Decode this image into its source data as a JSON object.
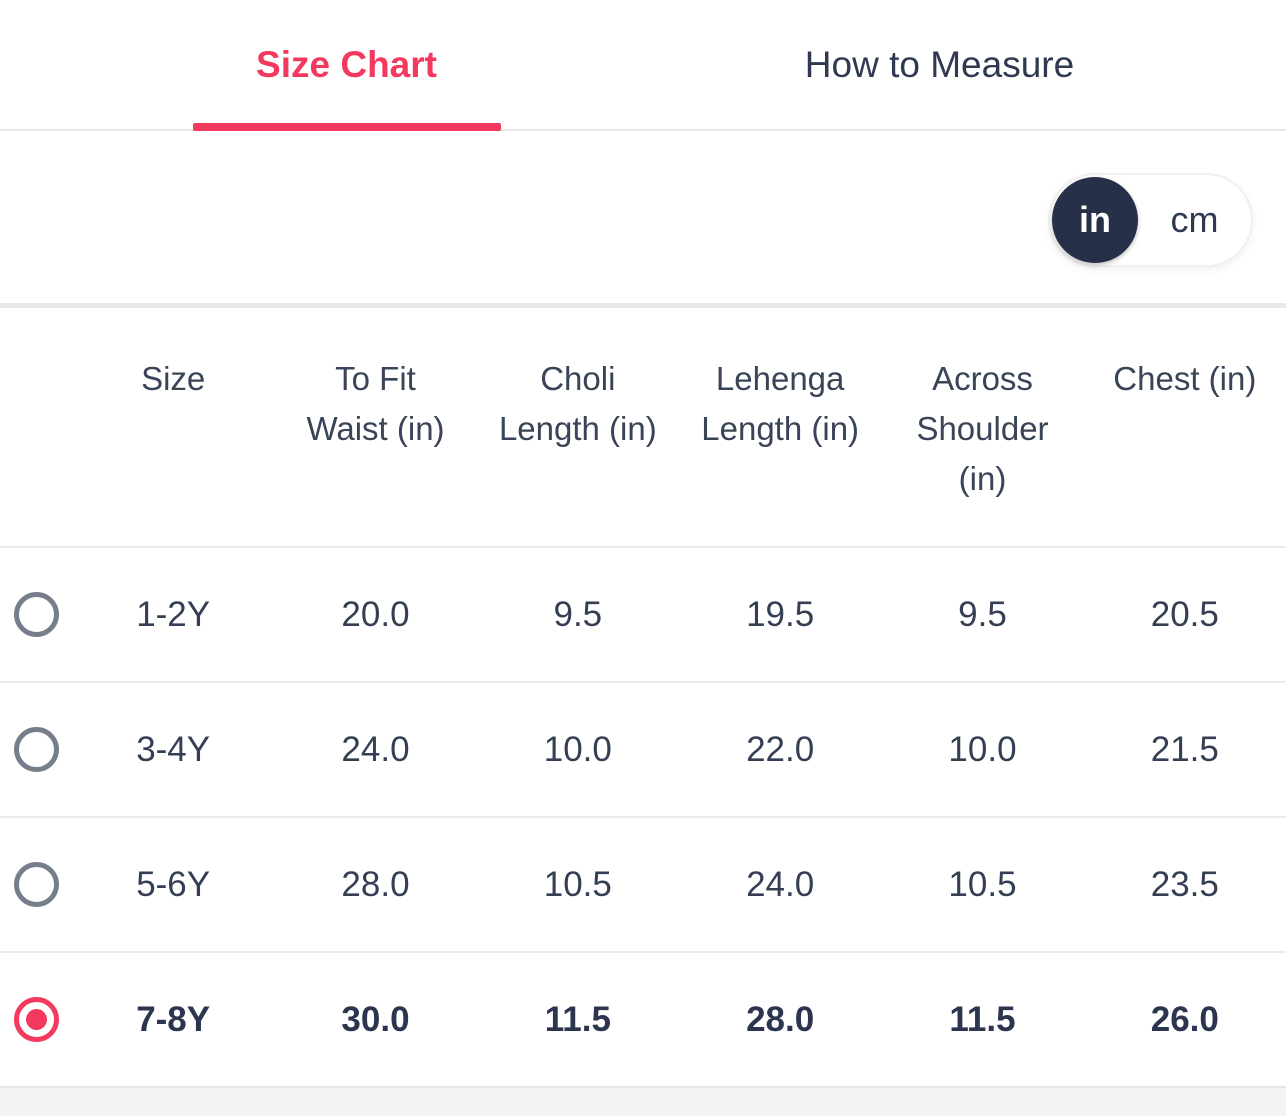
{
  "colors": {
    "accent_pink": "#F4395E",
    "text_dark": "#353F54",
    "toggle_dark": "#263049",
    "radio_gray": "#777E8B",
    "separator": "#ECECEC"
  },
  "tabs": [
    {
      "label": "Size Chart",
      "active": true
    },
    {
      "label": "How to Measure",
      "active": false
    }
  ],
  "unit_toggle": {
    "selected": "in",
    "options": [
      {
        "label": "in",
        "selected": true
      },
      {
        "label": "cm",
        "selected": false
      }
    ]
  },
  "table": {
    "columns": [
      {
        "label": "Size",
        "lines": [
          "Size"
        ]
      },
      {
        "label": "To Fit Waist (in)",
        "lines": [
          "To Fit",
          "Waist (in)"
        ]
      },
      {
        "label": "Choli Length (in)",
        "lines": [
          "Choli",
          "Length (in)"
        ]
      },
      {
        "label": "Lehenga Length (in)",
        "lines": [
          "Lehenga",
          "Length (in)"
        ]
      },
      {
        "label": "Across Shoulder (in)",
        "lines": [
          "Across",
          "Shoulder",
          "(in)"
        ]
      },
      {
        "label": "Chest (in)",
        "lines": [
          "Chest (in)"
        ]
      }
    ],
    "rows": [
      {
        "size": "1-2Y",
        "to_fit_waist": "20.0",
        "choli_length": "9.5",
        "lehenga_length": "19.5",
        "across_shoulder": "9.5",
        "chest": "20.5",
        "selected": false
      },
      {
        "size": "3-4Y",
        "to_fit_waist": "24.0",
        "choli_length": "10.0",
        "lehenga_length": "22.0",
        "across_shoulder": "10.0",
        "chest": "21.5",
        "selected": false
      },
      {
        "size": "5-6Y",
        "to_fit_waist": "28.0",
        "choli_length": "10.5",
        "lehenga_length": "24.0",
        "across_shoulder": "10.5",
        "chest": "23.5",
        "selected": false
      },
      {
        "size": "7-8Y",
        "to_fit_waist": "30.0",
        "choli_length": "11.5",
        "lehenga_length": "28.0",
        "across_shoulder": "11.5",
        "chest": "26.0",
        "selected": true
      }
    ]
  }
}
